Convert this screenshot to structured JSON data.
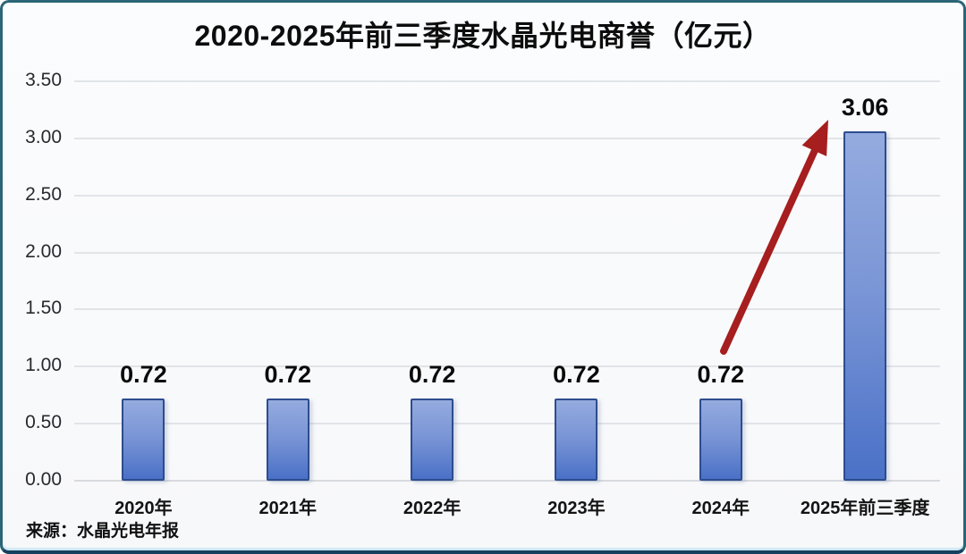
{
  "title": "2020-2025年前三季度水晶光电商誉（亿元）",
  "source": "来源：水晶光电年报",
  "chart_data": {
    "type": "bar",
    "title": "2020-2025年前三季度水晶光电商誉（亿元）",
    "categories": [
      "2020年",
      "2021年",
      "2022年",
      "2023年",
      "2024年",
      "2025年前三季度"
    ],
    "values": [
      0.72,
      0.72,
      0.72,
      0.72,
      0.72,
      3.06
    ],
    "data_labels": [
      "0.72",
      "0.72",
      "0.72",
      "0.72",
      "0.72",
      "3.06"
    ],
    "xlabel": "",
    "ylabel": "",
    "ylim": [
      0,
      3.5
    ],
    "y_tick_labels": [
      "0.00",
      "0.50",
      "1.00",
      "1.50",
      "2.00",
      "2.50",
      "3.00",
      "3.50"
    ],
    "grid": true,
    "legend": false,
    "annotation": {
      "type": "arrow",
      "description": "red arrow rising from above the 2024 bar to the top of the 2025 bar",
      "color": "#a61e1e"
    },
    "source": "来源：水晶光电年报"
  },
  "colors": {
    "bar_fill_top": "#94abdf",
    "bar_fill_mid": "#7b96d6",
    "bar_fill_bottom": "#4a71c7",
    "bar_border": "#2e4c8e",
    "gridline": "#e1e4e8",
    "baseline": "#d7dade",
    "arrow": "#a61e1e",
    "title_text": "#0d0d0d",
    "card_border": "#2b6577",
    "card_bottom_border": "#16405f",
    "background": "#f8f9fb"
  }
}
